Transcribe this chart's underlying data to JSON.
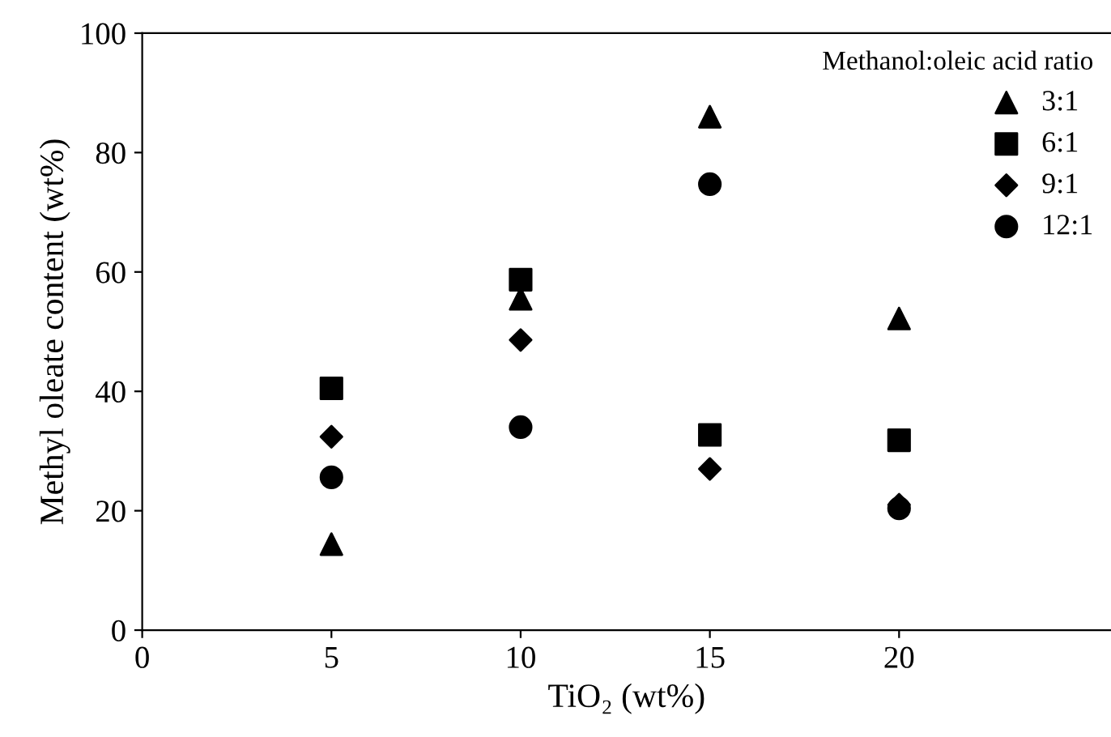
{
  "chart_data": {
    "type": "scatter",
    "xlabel": "TiO₂ (wt%)",
    "ylabel": "Methyl oleate content (wt%)",
    "legend_title": "Methanol:oleic acid ratio",
    "legend": "top right",
    "x": [
      5,
      10,
      15,
      20
    ],
    "xlim": [
      0,
      25.6
    ],
    "xticks": [
      0,
      5,
      10,
      15,
      20
    ],
    "ylim": [
      0,
      100
    ],
    "yticks": [
      0,
      20,
      40,
      60,
      80,
      100
    ],
    "grid": false,
    "series": [
      {
        "name": "3:1",
        "color": "#000000",
        "marker": "triangle",
        "values": [
          14.4,
          55.5,
          86,
          52.2
        ]
      },
      {
        "name": "6:1",
        "color": "#000000",
        "marker": "square",
        "values": [
          40.5,
          58.7,
          32.7,
          31.8
        ]
      },
      {
        "name": "9:1",
        "color": "#000000",
        "marker": "diamond",
        "values": [
          32.4,
          48.6,
          27,
          21
        ]
      },
      {
        "name": "12:1",
        "color": "#000000",
        "marker": "circle",
        "values": [
          25.6,
          34,
          74.7,
          20.4
        ]
      }
    ]
  }
}
